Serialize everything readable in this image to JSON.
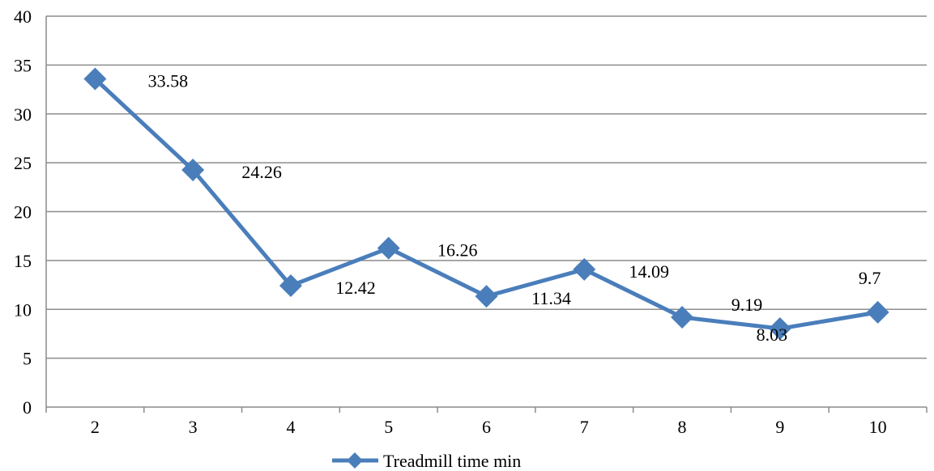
{
  "chart_data": {
    "type": "line",
    "title": "",
    "xlabel": "",
    "ylabel": "",
    "categories": [
      "2",
      "3",
      "4",
      "5",
      "6",
      "7",
      "8",
      "9",
      "10"
    ],
    "series": [
      {
        "name": "Treadmill time min",
        "values": [
          33.58,
          24.26,
          12.42,
          16.26,
          11.34,
          14.09,
          9.19,
          8.03,
          9.7
        ],
        "labels": [
          "33.58",
          "24.26",
          "12.42",
          "16.26",
          "11.34",
          "14.09",
          "9.19",
          "8.03",
          "9.7"
        ],
        "color": "#4a7ebb",
        "marker": "diamond"
      }
    ],
    "ylim": [
      0,
      40
    ],
    "yticks": [
      "0",
      "5",
      "10",
      "15",
      "20",
      "25",
      "30",
      "35",
      "40"
    ],
    "grid": true,
    "legend": "bottom"
  }
}
